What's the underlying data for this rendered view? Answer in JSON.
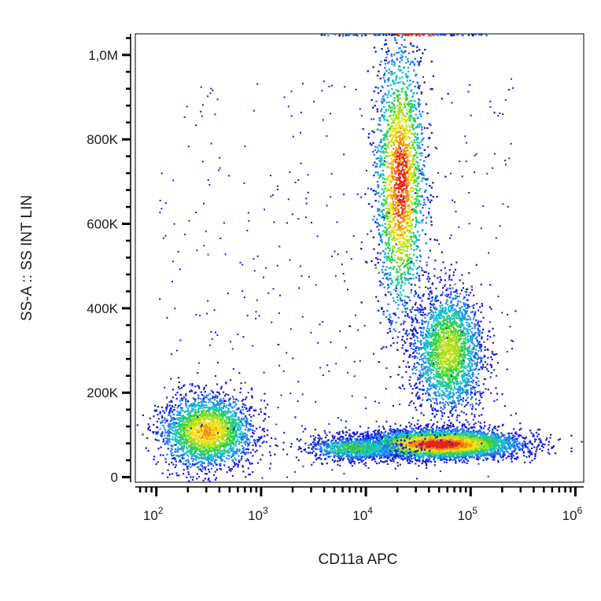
{
  "chart_data": {
    "type": "scatter",
    "title": "",
    "xlabel": "CD11a APC",
    "ylabel": "SS-A :: SS INT LIN",
    "x_scale": "log",
    "y_scale": "linear",
    "xlim": [
      63,
      1200000
    ],
    "ylim": [
      -12000,
      1050000
    ],
    "grid": false,
    "legend": "none",
    "x_ticks": [
      {
        "value": 100,
        "base": "10",
        "exp": "2"
      },
      {
        "value": 1000,
        "base": "10",
        "exp": "3"
      },
      {
        "value": 10000,
        "base": "10",
        "exp": "4"
      },
      {
        "value": 100000,
        "base": "10",
        "exp": "5"
      },
      {
        "value": 1000000,
        "base": "10",
        "exp": "6"
      }
    ],
    "y_ticks": [
      {
        "value": 0,
        "label": "0"
      },
      {
        "value": 200000,
        "label": "200K"
      },
      {
        "value": 400000,
        "label": "400K"
      },
      {
        "value": 600000,
        "label": "600K"
      },
      {
        "value": 800000,
        "label": "800K"
      },
      {
        "value": 1000000,
        "label": "1,0M"
      }
    ],
    "density_colors": [
      "#1a1ad6",
      "#1f7ff0",
      "#17c3c8",
      "#2ed04a",
      "#9fe01e",
      "#f2e21a",
      "#f28c16",
      "#e42418"
    ],
    "populations": [
      {
        "x_center": 300,
        "y_center": 110000,
        "x_spread_log10": 0.22,
        "y_spread": 42000,
        "count": 2600,
        "peak_density": 0.78
      },
      {
        "x_center": 21000,
        "y_center": 700000,
        "x_spread_log10": 0.12,
        "y_spread": 165000,
        "count": 4200,
        "peak_density": 0.95
      },
      {
        "x_center": 50000,
        "y_center": 80000,
        "x_spread_log10": 0.38,
        "y_spread": 17000,
        "count": 4800,
        "peak_density": 1.0
      },
      {
        "x_center": 60000,
        "y_center": 300000,
        "x_spread_log10": 0.17,
        "y_spread": 75000,
        "count": 2400,
        "peak_density": 0.62
      },
      {
        "x_center": 8000,
        "y_center": 70000,
        "x_spread_log10": 0.25,
        "y_spread": 15000,
        "count": 900,
        "peak_density": 0.45
      }
    ]
  }
}
